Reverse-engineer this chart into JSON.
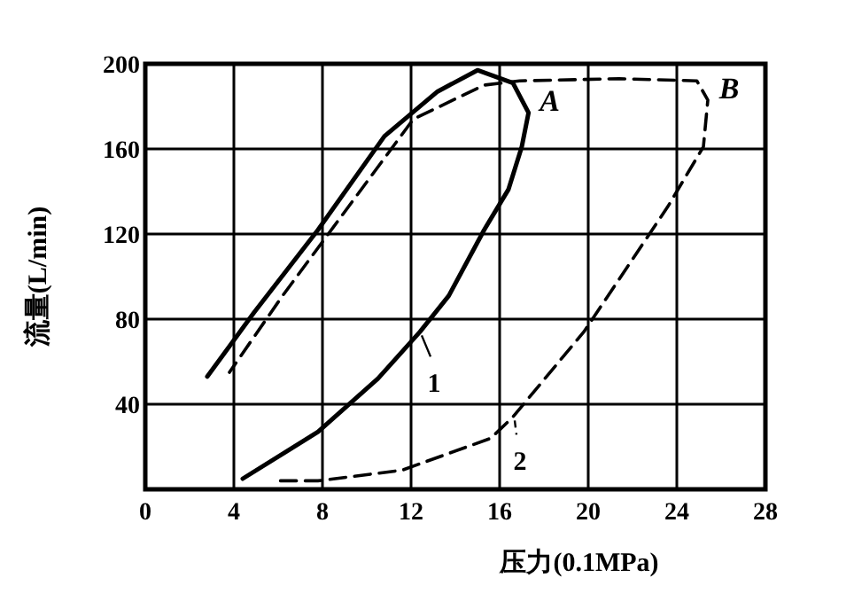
{
  "chart_data": {
    "type": "line",
    "xlabel": "压力(0.1MPa)",
    "ylabel": "流量(L/min)",
    "xlim": [
      0,
      28
    ],
    "ylim": [
      0,
      200
    ],
    "xticks": [
      0,
      4,
      8,
      12,
      16,
      20,
      24,
      28
    ],
    "yticks": [
      40,
      80,
      120,
      160,
      200
    ],
    "grid": true,
    "marker": "none",
    "legend": "bottom",
    "series": [
      {
        "name": "1",
        "color": "#000000",
        "line_style": "solid",
        "x": [
          4.4,
          7.8,
          10.5,
          12.4,
          13.7,
          15.3,
          16.4,
          17.0,
          17.3,
          16.6,
          15.0,
          13.2,
          10.8,
          7.8,
          4.9,
          2.8
        ],
        "values": [
          5,
          27,
          52,
          74,
          91,
          122,
          141,
          161,
          177,
          191,
          197,
          187,
          166,
          122,
          83,
          53
        ]
      },
      {
        "name": "2",
        "color": "#000000",
        "line_style": "dashed",
        "x": [
          6.1,
          7.8,
          11.6,
          15.6,
          16.6,
          19.8,
          23.6,
          25.2,
          25.4,
          24.9,
          21.4,
          16.9,
          15.3,
          12.1,
          9.4,
          6.2,
          3.8
        ],
        "values": [
          4,
          4,
          9,
          24,
          34,
          74,
          133,
          161,
          183,
          192,
          193,
          192,
          190,
          174,
          136,
          91,
          55
        ]
      }
    ],
    "annotations": [
      "A",
      "B"
    ]
  }
}
